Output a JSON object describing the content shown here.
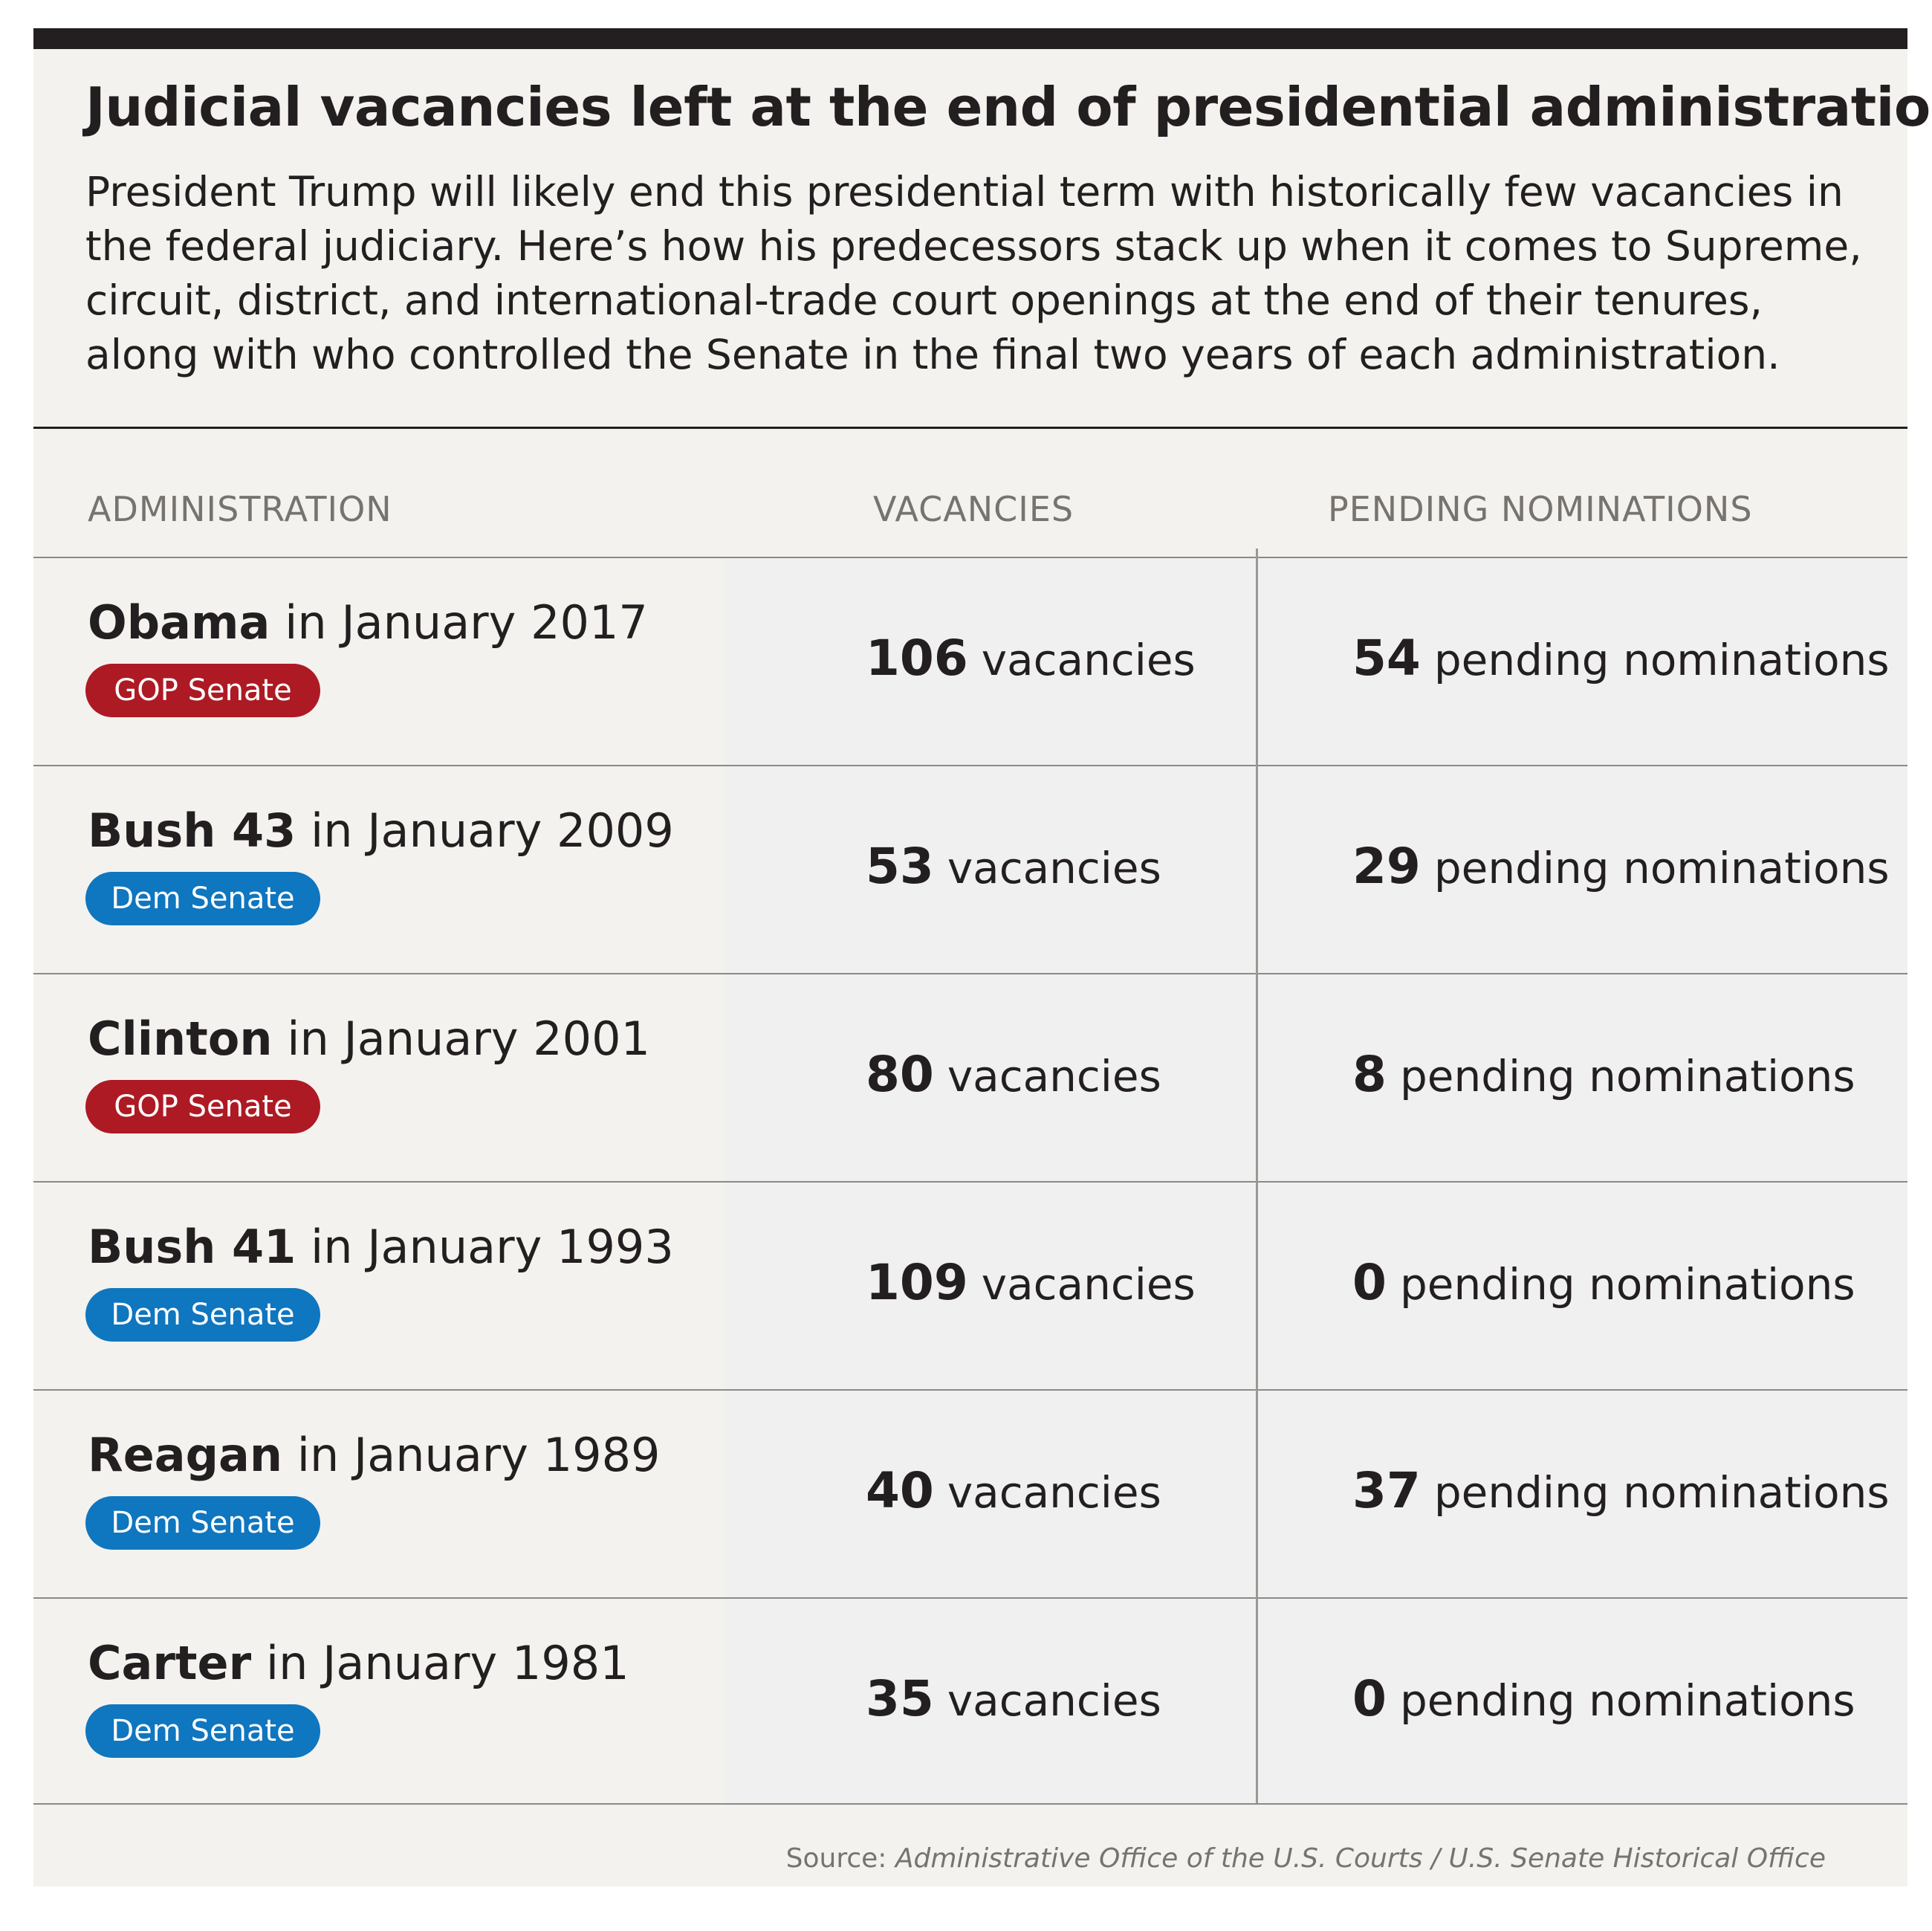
{
  "title": "Judicial vacancies left at the end of presidential administrations",
  "subtitle": "President Trump will likely end this presidential term with historically few vacancies in the federal judiciary. Here’s how his predecessors stack up when it comes to Supreme, circuit, district, and international-trade court openings at the end of their tenures, along with who controlled the Senate in the final two years of each administration.",
  "columns": {
    "administration": "ADMINISTRATION",
    "vacancies": "VACANCIES",
    "pending": "PENDING NOMINATIONS"
  },
  "units": {
    "vacancies": "vacancies",
    "pending": "pending nominations"
  },
  "colors": {
    "gop": "#ad1a24",
    "dem": "#0f76c0"
  },
  "source": {
    "label": "Source:",
    "text": "Administrative Office of the U.S. Courts / U.S. Senate Historical Office"
  },
  "chart_data": {
    "type": "table",
    "columns": [
      "ADMINISTRATION",
      "VACANCIES",
      "PENDING NOMINATIONS"
    ],
    "rows": [
      {
        "president": "Obama",
        "when": "in January 2017",
        "senate": "GOP Senate",
        "party": "gop",
        "vacancies": 106,
        "pending": 54
      },
      {
        "president": "Bush 43",
        "when": "in January 2009",
        "senate": "Dem Senate",
        "party": "dem",
        "vacancies": 53,
        "pending": 29
      },
      {
        "president": "Clinton",
        "when": "in January 2001",
        "senate": "GOP Senate",
        "party": "gop",
        "vacancies": 80,
        "pending": 8
      },
      {
        "president": "Bush 41",
        "when": "in January 1993",
        "senate": "Dem Senate",
        "party": "dem",
        "vacancies": 109,
        "pending": 0
      },
      {
        "president": "Reagan",
        "when": "in January 1989",
        "senate": "Dem Senate",
        "party": "dem",
        "vacancies": 40,
        "pending": 37
      },
      {
        "president": "Carter",
        "when": "in January 1981",
        "senate": "Dem Senate",
        "party": "dem",
        "vacancies": 35,
        "pending": 0
      }
    ]
  }
}
